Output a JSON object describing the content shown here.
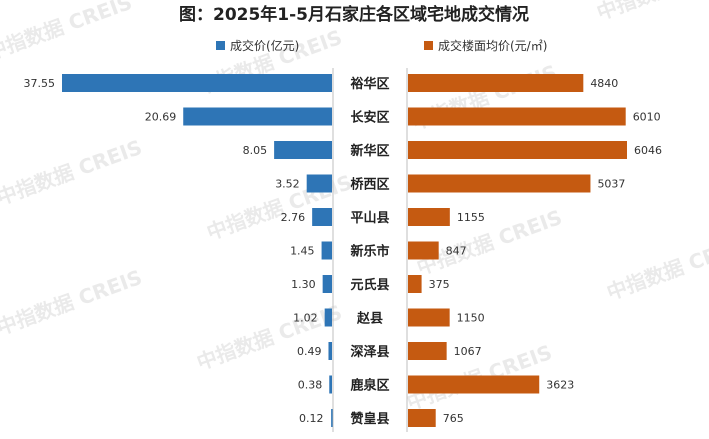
{
  "chart_data": {
    "type": "bar",
    "title": "图：2025年1-5月石家庄各区域宅地成交情况",
    "watermark": "中指数据 CREIS",
    "categories": [
      "裕华区",
      "长安区",
      "新华区",
      "桥西区",
      "平山县",
      "新乐市",
      "元氏县",
      "赵县",
      "深泽县",
      "鹿泉区",
      "赞皇县"
    ],
    "series": [
      {
        "name": "成交价(亿元)",
        "color": "#2e75b6",
        "direction": "left",
        "values": [
          37.55,
          20.69,
          8.05,
          3.52,
          2.76,
          1.45,
          1.3,
          1.02,
          0.49,
          0.38,
          0.12
        ],
        "labels": [
          "37.55",
          "20.69",
          "8.05",
          "3.52",
          "2.76",
          "1.45",
          "1.30",
          "1.02",
          "0.49",
          "0.38",
          "0.12"
        ]
      },
      {
        "name": "成交楼面均价(元/㎡)",
        "color": "#c55a11",
        "direction": "right",
        "values": [
          4840,
          6010,
          6046,
          5037,
          1155,
          847,
          375,
          1150,
          1067,
          3623,
          765
        ],
        "labels": [
          "4840",
          "6010",
          "6046",
          "5037",
          "1155",
          "847",
          "375",
          "1150",
          "1067",
          "3623",
          "765"
        ]
      }
    ],
    "legend_position": "top",
    "grid": false
  }
}
